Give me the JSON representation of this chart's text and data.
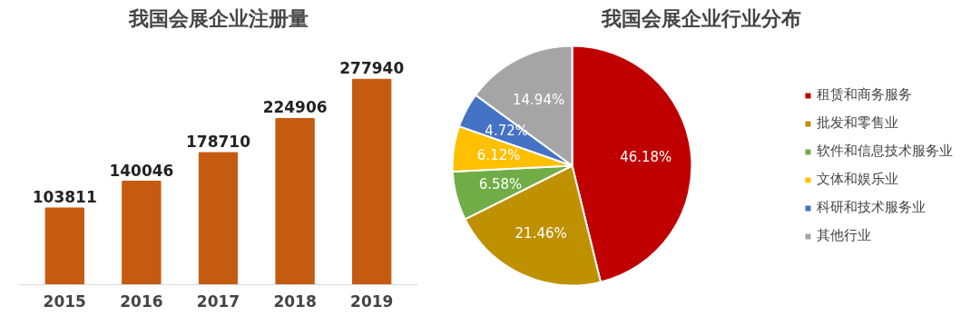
{
  "chart_data": [
    {
      "type": "bar",
      "title": "我国会展企业注册量",
      "categories": [
        "2015",
        "2016",
        "2017",
        "2018",
        "2019"
      ],
      "values": [
        103811,
        140046,
        178710,
        224906,
        277940
      ],
      "color": "#c55a11",
      "data_labels": true,
      "grid": false
    },
    {
      "type": "pie",
      "title": "我国会展企业行业分布",
      "categories": [
        "租赁和商务服务",
        "批发和零售业",
        "软件和信息技术服务业",
        "文体和娱乐业",
        "科研和技术服务业",
        "其他行业"
      ],
      "values": [
        46.18,
        21.46,
        6.58,
        6.12,
        4.72,
        14.94
      ],
      "colors": [
        "#c00000",
        "#bf9000",
        "#70ad47",
        "#ffc000",
        "#4472c4",
        "#a5a5a5"
      ],
      "value_labels": [
        "46.18%",
        "21.46%",
        "6.58%",
        "6.12%",
        "4.72%",
        "14.94%"
      ],
      "legend": "right"
    }
  ]
}
